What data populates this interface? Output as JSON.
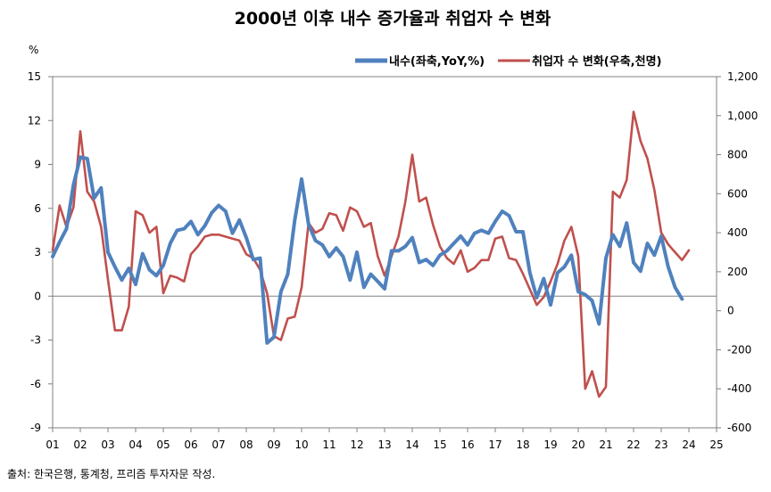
{
  "chart_data": {
    "type": "line",
    "title": "2000년 이후 내수 증가율과 취업자 수 변화",
    "left_axis": {
      "unit_label": "%",
      "min": -9,
      "max": 15,
      "ticks": [
        15,
        12,
        9,
        6,
        3,
        0,
        -3,
        -6,
        -9
      ]
    },
    "right_axis": {
      "min": -600,
      "max": 1200,
      "ticks": [
        "1,200",
        "1,000",
        "800",
        "600",
        "400",
        "200",
        "0",
        "-200",
        "-400",
        "-600"
      ]
    },
    "x_ticks": [
      "01",
      "02",
      "03",
      "04",
      "05",
      "06",
      "07",
      "08",
      "09",
      "10",
      "11",
      "12",
      "13",
      "14",
      "15",
      "16",
      "17",
      "18",
      "19",
      "20",
      "21",
      "22",
      "23",
      "24",
      "25"
    ],
    "x_range": [
      2001,
      2025
    ],
    "legend_position": "top-right",
    "series": [
      {
        "name": "내수(좌축,YoY,%)",
        "axis": "left",
        "color": "#4F81BD",
        "points": [
          [
            2001.0,
            2.7
          ],
          [
            2001.25,
            3.7
          ],
          [
            2001.5,
            4.6
          ],
          [
            2001.75,
            7.6
          ],
          [
            2002.0,
            9.5
          ],
          [
            2002.25,
            9.4
          ],
          [
            2002.5,
            6.7
          ],
          [
            2002.75,
            7.4
          ],
          [
            2003.0,
            3.0
          ],
          [
            2003.25,
            2.0
          ],
          [
            2003.5,
            1.1
          ],
          [
            2003.75,
            1.9
          ],
          [
            2004.0,
            0.8
          ],
          [
            2004.25,
            2.9
          ],
          [
            2004.5,
            1.8
          ],
          [
            2004.75,
            1.4
          ],
          [
            2005.0,
            2.1
          ],
          [
            2005.25,
            3.6
          ],
          [
            2005.5,
            4.5
          ],
          [
            2005.75,
            4.6
          ],
          [
            2006.0,
            5.1
          ],
          [
            2006.25,
            4.2
          ],
          [
            2006.5,
            4.8
          ],
          [
            2006.75,
            5.7
          ],
          [
            2007.0,
            6.2
          ],
          [
            2007.25,
            5.8
          ],
          [
            2007.5,
            4.3
          ],
          [
            2007.75,
            5.2
          ],
          [
            2008.0,
            4.0
          ],
          [
            2008.25,
            2.5
          ],
          [
            2008.5,
            2.6
          ],
          [
            2008.75,
            -3.2
          ],
          [
            2009.0,
            -2.8
          ],
          [
            2009.25,
            0.3
          ],
          [
            2009.5,
            1.5
          ],
          [
            2009.75,
            5.2
          ],
          [
            2010.0,
            8.0
          ],
          [
            2010.25,
            4.9
          ],
          [
            2010.5,
            3.8
          ],
          [
            2010.75,
            3.5
          ],
          [
            2011.0,
            2.7
          ],
          [
            2011.25,
            3.3
          ],
          [
            2011.5,
            2.7
          ],
          [
            2011.75,
            1.1
          ],
          [
            2012.0,
            3.0
          ],
          [
            2012.25,
            0.6
          ],
          [
            2012.5,
            1.5
          ],
          [
            2012.75,
            1.0
          ],
          [
            2013.0,
            0.5
          ],
          [
            2013.25,
            3.1
          ],
          [
            2013.5,
            3.1
          ],
          [
            2013.75,
            3.4
          ],
          [
            2014.0,
            4.0
          ],
          [
            2014.25,
            2.3
          ],
          [
            2014.5,
            2.5
          ],
          [
            2014.75,
            2.1
          ],
          [
            2015.0,
            2.8
          ],
          [
            2015.25,
            3.1
          ],
          [
            2015.5,
            3.6
          ],
          [
            2015.75,
            4.1
          ],
          [
            2016.0,
            3.5
          ],
          [
            2016.25,
            4.3
          ],
          [
            2016.5,
            4.5
          ],
          [
            2016.75,
            4.3
          ],
          [
            2017.0,
            5.1
          ],
          [
            2017.25,
            5.8
          ],
          [
            2017.5,
            5.5
          ],
          [
            2017.75,
            4.4
          ],
          [
            2018.0,
            4.4
          ],
          [
            2018.25,
            1.6
          ],
          [
            2018.5,
            -0.1
          ],
          [
            2018.75,
            1.2
          ],
          [
            2019.0,
            -0.6
          ],
          [
            2019.25,
            1.6
          ],
          [
            2019.5,
            2.0
          ],
          [
            2019.75,
            2.8
          ],
          [
            2020.0,
            0.3
          ],
          [
            2020.25,
            0.1
          ],
          [
            2020.5,
            -0.3
          ],
          [
            2020.75,
            -1.9
          ],
          [
            2021.0,
            2.6
          ],
          [
            2021.25,
            4.2
          ],
          [
            2021.5,
            3.4
          ],
          [
            2021.75,
            5.0
          ],
          [
            2022.0,
            2.3
          ],
          [
            2022.25,
            1.7
          ],
          [
            2022.5,
            3.6
          ],
          [
            2022.75,
            2.8
          ],
          [
            2023.0,
            4.1
          ],
          [
            2023.25,
            2.0
          ],
          [
            2023.5,
            0.6
          ],
          [
            2023.75,
            -0.2
          ]
        ]
      },
      {
        "name": "취업자 수 변화(우축,천명)",
        "axis": "right",
        "color": "#C0504D",
        "points": [
          [
            2001.0,
            310
          ],
          [
            2001.25,
            540
          ],
          [
            2001.5,
            430
          ],
          [
            2001.75,
            530
          ],
          [
            2002.0,
            920
          ],
          [
            2002.25,
            610
          ],
          [
            2002.5,
            560
          ],
          [
            2002.75,
            430
          ],
          [
            2003.0,
            160
          ],
          [
            2003.25,
            -100
          ],
          [
            2003.5,
            -100
          ],
          [
            2003.75,
            20
          ],
          [
            2004.0,
            510
          ],
          [
            2004.25,
            490
          ],
          [
            2004.5,
            400
          ],
          [
            2004.75,
            430
          ],
          [
            2005.0,
            90
          ],
          [
            2005.25,
            180
          ],
          [
            2005.5,
            170
          ],
          [
            2005.75,
            150
          ],
          [
            2006.0,
            290
          ],
          [
            2006.25,
            330
          ],
          [
            2006.5,
            380
          ],
          [
            2006.75,
            390
          ],
          [
            2007.0,
            390
          ],
          [
            2007.25,
            380
          ],
          [
            2007.5,
            370
          ],
          [
            2007.75,
            360
          ],
          [
            2008.0,
            290
          ],
          [
            2008.25,
            270
          ],
          [
            2008.5,
            210
          ],
          [
            2008.75,
            90
          ],
          [
            2009.0,
            -130
          ],
          [
            2009.25,
            -150
          ],
          [
            2009.5,
            -40
          ],
          [
            2009.75,
            -30
          ],
          [
            2010.0,
            120
          ],
          [
            2010.25,
            450
          ],
          [
            2010.5,
            400
          ],
          [
            2010.75,
            420
          ],
          [
            2011.0,
            500
          ],
          [
            2011.25,
            490
          ],
          [
            2011.5,
            410
          ],
          [
            2011.75,
            530
          ],
          [
            2012.0,
            510
          ],
          [
            2012.25,
            430
          ],
          [
            2012.5,
            450
          ],
          [
            2012.75,
            280
          ],
          [
            2013.0,
            180
          ],
          [
            2013.25,
            280
          ],
          [
            2013.5,
            380
          ],
          [
            2013.75,
            560
          ],
          [
            2014.0,
            800
          ],
          [
            2014.25,
            560
          ],
          [
            2014.5,
            580
          ],
          [
            2014.75,
            440
          ],
          [
            2015.0,
            330
          ],
          [
            2015.25,
            270
          ],
          [
            2015.5,
            240
          ],
          [
            2015.75,
            310
          ],
          [
            2016.0,
            200
          ],
          [
            2016.25,
            220
          ],
          [
            2016.5,
            260
          ],
          [
            2016.75,
            260
          ],
          [
            2017.0,
            370
          ],
          [
            2017.25,
            380
          ],
          [
            2017.5,
            270
          ],
          [
            2017.75,
            260
          ],
          [
            2018.0,
            190
          ],
          [
            2018.25,
            110
          ],
          [
            2018.5,
            30
          ],
          [
            2018.75,
            70
          ],
          [
            2019.0,
            150
          ],
          [
            2019.25,
            240
          ],
          [
            2019.5,
            360
          ],
          [
            2019.75,
            430
          ],
          [
            2020.0,
            280
          ],
          [
            2020.25,
            -400
          ],
          [
            2020.5,
            -310
          ],
          [
            2020.75,
            -440
          ],
          [
            2021.0,
            -390
          ],
          [
            2021.25,
            610
          ],
          [
            2021.5,
            580
          ],
          [
            2021.75,
            670
          ],
          [
            2022.0,
            1020
          ],
          [
            2022.25,
            870
          ],
          [
            2022.5,
            780
          ],
          [
            2022.75,
            620
          ],
          [
            2023.0,
            400
          ],
          [
            2023.25,
            340
          ],
          [
            2023.5,
            300
          ],
          [
            2023.75,
            260
          ],
          [
            2024.0,
            310
          ]
        ]
      }
    ]
  },
  "source_note": "출처: 한국은행, 통계청, 프리즘 투자자문 작성."
}
